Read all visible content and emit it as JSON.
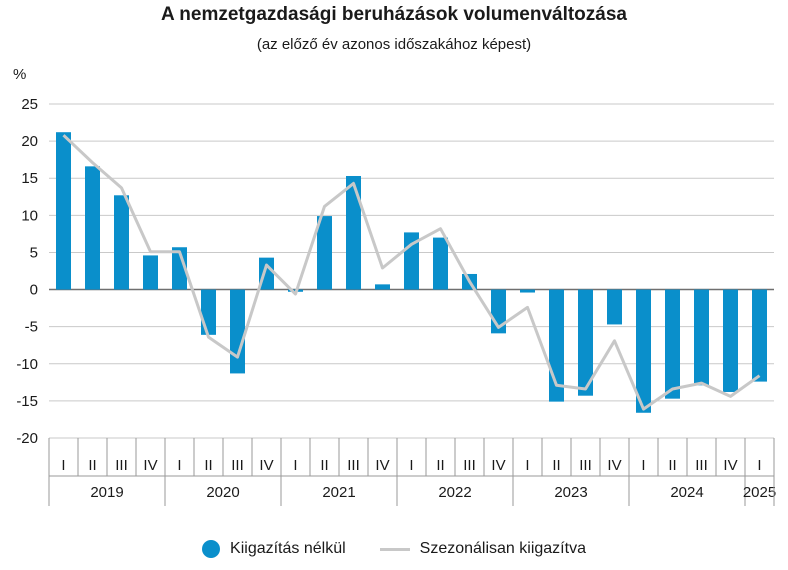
{
  "chart_data": {
    "type": "bar",
    "title": "A nemzetgazdasági beruházások volumenváltozása",
    "subtitle": "(az előző év azonos időszakához képest)",
    "ylabel": "%",
    "ylim": [
      -20,
      25
    ],
    "yticks": [
      25,
      20,
      15,
      10,
      5,
      0,
      -5,
      -10,
      -15,
      -20
    ],
    "grid": true,
    "legend_position": "bottom",
    "categories": [
      "I",
      "II",
      "III",
      "IV",
      "I",
      "II",
      "III",
      "IV",
      "I",
      "II",
      "III",
      "IV",
      "I",
      "II",
      "III",
      "IV",
      "I",
      "II",
      "III",
      "IV",
      "I",
      "II",
      "III",
      "IV",
      "I"
    ],
    "years": [
      {
        "label": "2019",
        "quarters": 4
      },
      {
        "label": "2020",
        "quarters": 4
      },
      {
        "label": "2021",
        "quarters": 4
      },
      {
        "label": "2022",
        "quarters": 4
      },
      {
        "label": "2023",
        "quarters": 4
      },
      {
        "label": "2024",
        "quarters": 4
      },
      {
        "label": "2025",
        "quarters": 1
      }
    ],
    "series": [
      {
        "name": "Kiigazítás nélkül",
        "type": "bar",
        "color": "#0a8fcb",
        "values": [
          21.2,
          16.6,
          12.7,
          4.6,
          5.7,
          -6.1,
          -11.3,
          4.3,
          -0.3,
          9.9,
          15.3,
          0.7,
          7.7,
          7.0,
          2.1,
          -5.9,
          -0.4,
          -15.1,
          -14.3,
          -4.7,
          -16.6,
          -14.7,
          -12.9,
          -13.8,
          -12.4
        ]
      },
      {
        "name": "Szezonálisan kiigazítva",
        "type": "line",
        "color": "#c8c8c8",
        "values": [
          20.8,
          17.1,
          13.7,
          5.1,
          5.1,
          -6.4,
          -9.1,
          3.3,
          -0.6,
          11.2,
          14.3,
          2.9,
          6.1,
          8.2,
          1.1,
          -5.1,
          -2.4,
          -12.9,
          -13.4,
          -6.9,
          -16.1,
          -13.4,
          -12.6,
          -14.4,
          -11.6
        ]
      }
    ]
  },
  "legend": {
    "items": [
      {
        "label": "Kiigazítás nélkül",
        "color": "#0a8fcb"
      },
      {
        "label": "Szezonálisan kiigazítva",
        "color": "#c8c8c8"
      }
    ]
  }
}
